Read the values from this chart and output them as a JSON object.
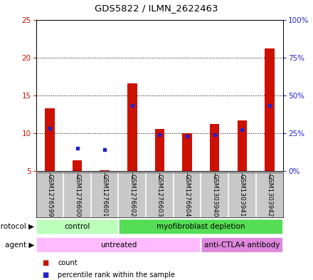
{
  "title": "GDS5822 / ILMN_2622463",
  "samples": [
    "GSM1276599",
    "GSM1276600",
    "GSM1276601",
    "GSM1276602",
    "GSM1276603",
    "GSM1276604",
    "GSM1303940",
    "GSM1303941",
    "GSM1303942"
  ],
  "counts": [
    13.3,
    6.4,
    5.1,
    16.6,
    10.5,
    10.0,
    11.2,
    11.7,
    21.2
  ],
  "percentile_ranks": [
    28.0,
    15.0,
    14.0,
    43.0,
    24.0,
    23.0,
    24.0,
    27.0,
    43.0
  ],
  "bar_bottom": 5.0,
  "ylim_left": [
    5,
    25
  ],
  "ylim_right": [
    0,
    100
  ],
  "yticks_left": [
    5,
    10,
    15,
    20,
    25
  ],
  "ytick_labels_right": [
    "0%",
    "25%",
    "50%",
    "75%",
    "100%"
  ],
  "bar_color": "#cc1100",
  "blue_color": "#2222cc",
  "bar_width": 0.35,
  "grid_color": "#000000",
  "protocol_groups": [
    {
      "label": "control",
      "start": 0,
      "end": 3,
      "color": "#bbffbb"
    },
    {
      "label": "myofibroblast depletion",
      "start": 3,
      "end": 9,
      "color": "#55dd55"
    }
  ],
  "agent_groups": [
    {
      "label": "untreated",
      "start": 0,
      "end": 6,
      "color": "#ffbbff"
    },
    {
      "label": "anti-CTLA4 antibody",
      "start": 6,
      "end": 9,
      "color": "#dd88dd"
    }
  ],
  "protocol_label": "protocol",
  "agent_label": "agent",
  "left_tick_color": "#cc1100",
  "right_tick_color": "#2222cc",
  "bg_color": "#ffffff",
  "plot_bg_color": "#ffffff",
  "sample_bg_color": "#c8c8c8"
}
